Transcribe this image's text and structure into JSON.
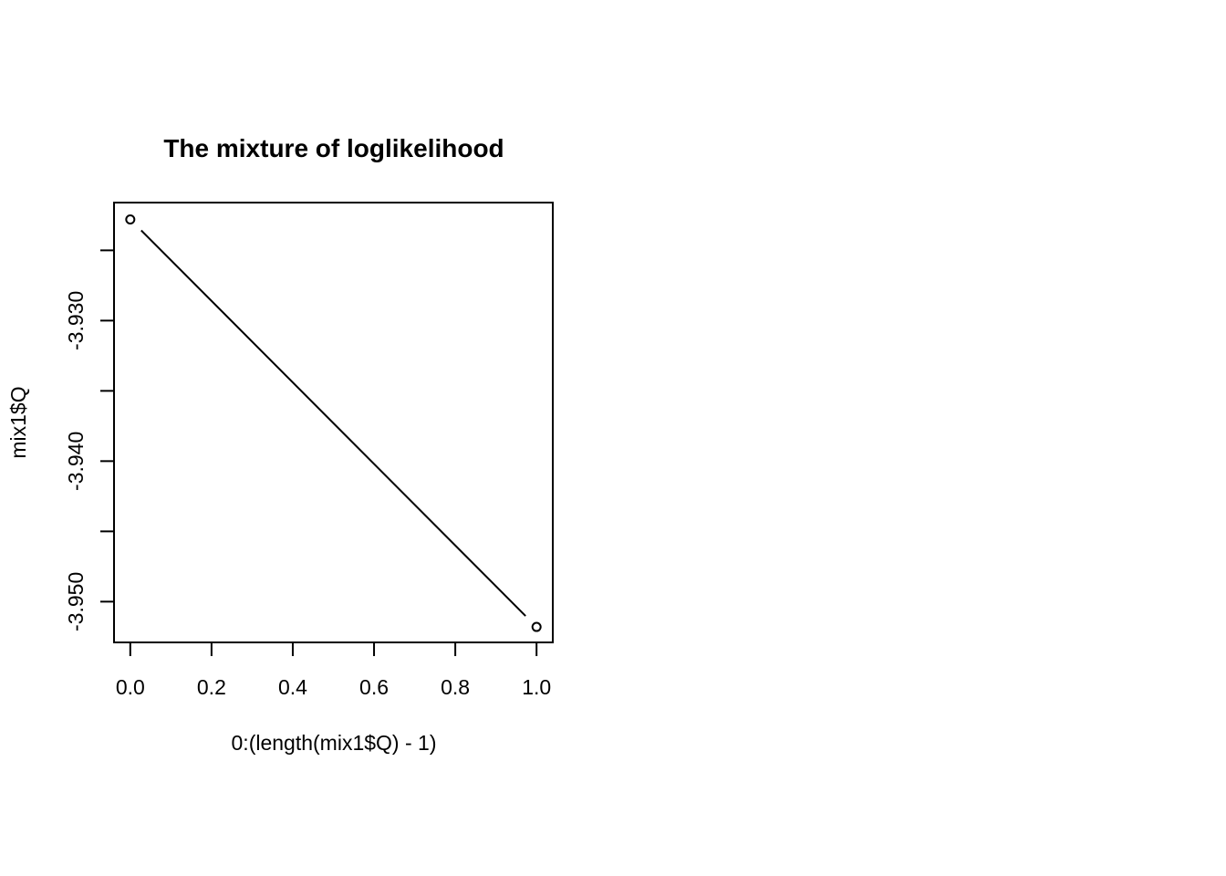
{
  "chart_data": {
    "type": "line",
    "title": "The mixture of loglikelihood",
    "xlabel": "0:(length(mix1$Q) - 1)",
    "ylabel": "mix1$Q",
    "xlim": [
      -0.04,
      1.04
    ],
    "ylim": [
      -3.9529,
      -3.9216
    ],
    "x_ticks": [
      0.0,
      0.2,
      0.4,
      0.6,
      0.8,
      1.0
    ],
    "x_tick_labels": [
      "0.0",
      "0.2",
      "0.4",
      "0.6",
      "0.8",
      "1.0"
    ],
    "y_ticks": [
      -3.95,
      -3.945,
      -3.94,
      -3.935,
      -3.93,
      -3.925
    ],
    "y_tick_labels": [
      "-3.950",
      "",
      "-3.940",
      "",
      "-3.930",
      ""
    ],
    "grid": false,
    "series": [
      {
        "name": "mix1$Q",
        "x": [
          0,
          1
        ],
        "y": [
          -3.9228,
          -3.9518
        ]
      }
    ]
  }
}
